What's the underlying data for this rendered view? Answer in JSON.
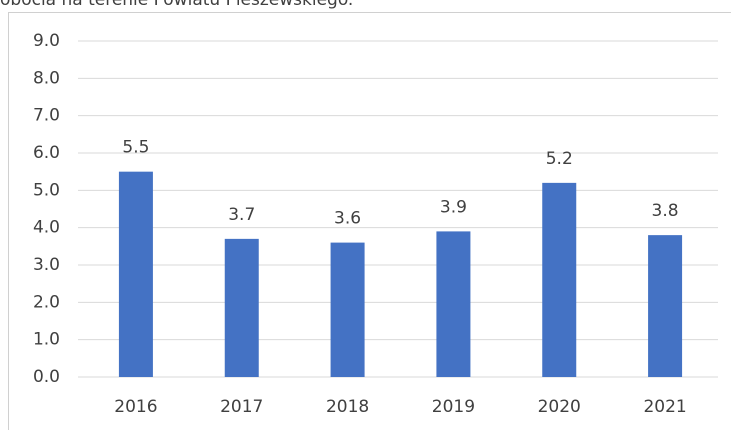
{
  "chart_data": {
    "type": "bar",
    "title": "obocia na terenie Powiatu Pleszewskiego.",
    "categories": [
      "2016",
      "2017",
      "2018",
      "2019",
      "2020",
      "2021"
    ],
    "values": [
      5.5,
      3.7,
      3.6,
      3.9,
      5.2,
      3.8
    ],
    "value_labels": [
      "5.5",
      "3.7",
      "3.6",
      "3.9",
      "5.2",
      "3.8"
    ],
    "color": "#4472c4",
    "ylim": [
      0,
      9
    ],
    "yticks": [
      {
        "value": 0,
        "label": "0.0"
      },
      {
        "value": 1,
        "label": "1.0"
      },
      {
        "value": 2,
        "label": "2.0"
      },
      {
        "value": 3,
        "label": "3.0"
      },
      {
        "value": 4,
        "label": "4.0"
      },
      {
        "value": 5,
        "label": "5.0"
      },
      {
        "value": 6,
        "label": "6.0"
      },
      {
        "value": 7,
        "label": "7.0"
      },
      {
        "value": 8,
        "label": "8.0"
      },
      {
        "value": 9,
        "label": "9.0"
      }
    ],
    "grid": true
  }
}
